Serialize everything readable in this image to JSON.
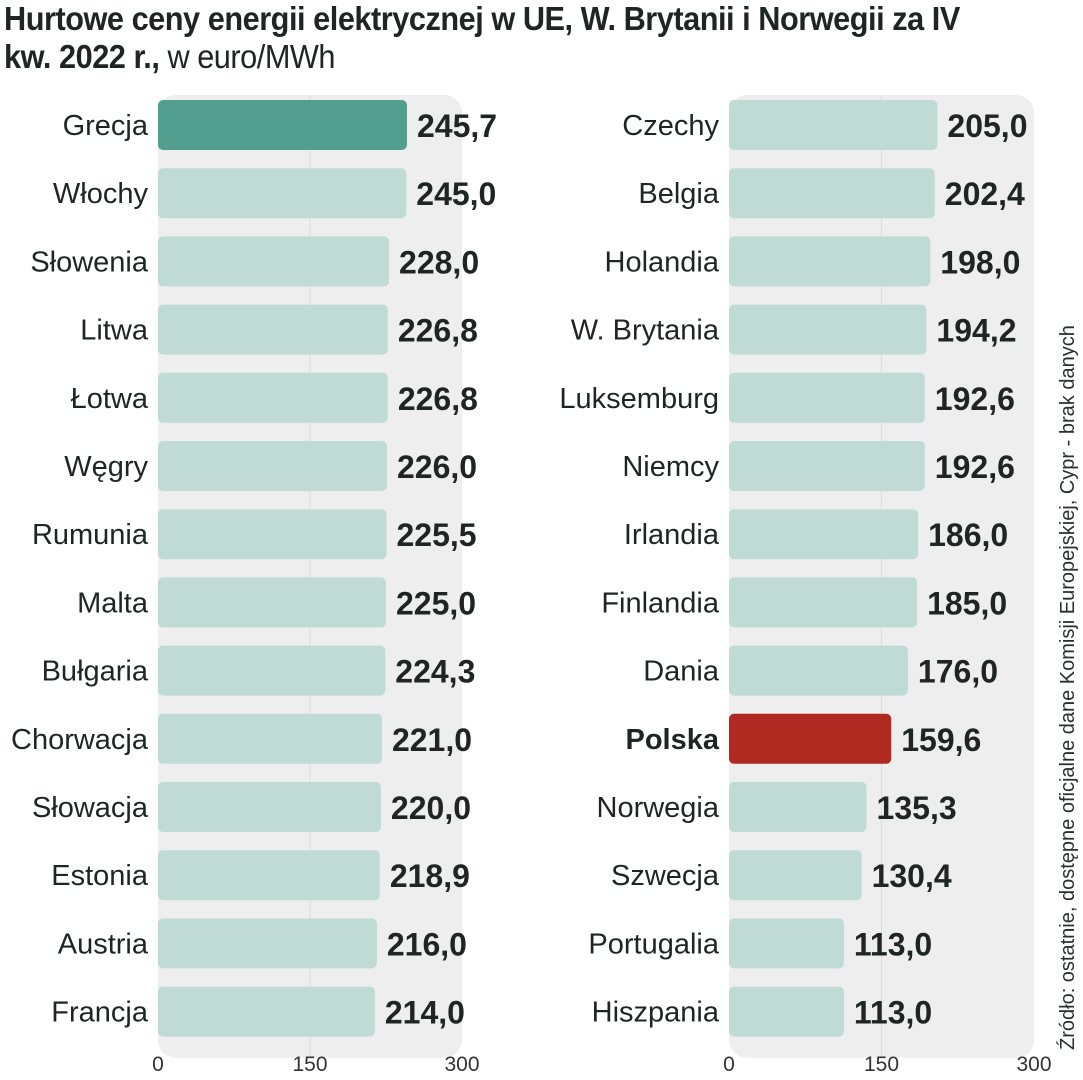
{
  "title": {
    "main": "Hurtowe ceny energii elektrycznej w UE, W. Brytanii i Norwegii za IV kw. 2022 r.,",
    "unit": "w euro/MWh"
  },
  "source": "Źródło: ostatnie, dostępne oficjalne dane Komisji Europejskiej, Cypr - brak danych",
  "colors": {
    "bar_default": "#bfdbd3",
    "bar_highlight_top": "#529e8f",
    "bar_poland": "#b02a22",
    "panel_bg": "#eeeeee"
  },
  "chart_data": [
    {
      "type": "bar",
      "orientation": "horizontal",
      "xlim": [
        0,
        300
      ],
      "xticks": [
        "0",
        "150",
        "300"
      ],
      "categories": [
        "Grecja",
        "Włochy",
        "Słowenia",
        "Litwa",
        "Łotwa",
        "Węgry",
        "Rumunia",
        "Malta",
        "Bułgaria",
        "Chorwacja",
        "Słowacja",
        "Estonia",
        "Austria",
        "Francja"
      ],
      "values": [
        245.7,
        245.0,
        228.0,
        226.8,
        226.8,
        226.0,
        225.5,
        225.0,
        224.3,
        221.0,
        220.0,
        218.9,
        216.0,
        214.0
      ],
      "value_labels": [
        "245,7",
        "245,0",
        "228,0",
        "226,8",
        "226,8",
        "226,0",
        "225,5",
        "225,0",
        "224,3",
        "221,0",
        "220,0",
        "218,9",
        "216,0",
        "214,0"
      ],
      "highlight": {
        "Grecja": "#529e8f"
      }
    },
    {
      "type": "bar",
      "orientation": "horizontal",
      "xlim": [
        0,
        300
      ],
      "xticks": [
        "0",
        "150",
        "300"
      ],
      "categories": [
        "Czechy",
        "Belgia",
        "Holandia",
        "W. Brytania",
        "Luksemburg",
        "Niemcy",
        "Irlandia",
        "Finlandia",
        "Dania",
        "Polska",
        "Norwegia",
        "Szwecja",
        "Portugalia",
        "Hiszpania"
      ],
      "values": [
        205.0,
        202.4,
        198.0,
        194.2,
        192.6,
        192.6,
        186.0,
        185.0,
        176.0,
        159.6,
        135.3,
        130.4,
        113.0,
        113.0
      ],
      "value_labels": [
        "205,0",
        "202,4",
        "198,0",
        "194,2",
        "192,6",
        "192,6",
        "186,0",
        "185,0",
        "176,0",
        "159,6",
        "135,3",
        "130,4",
        "113,0",
        "113,0"
      ],
      "highlight": {
        "Polska": "#b02a22"
      },
      "bold_categories": [
        "Polska"
      ]
    }
  ]
}
